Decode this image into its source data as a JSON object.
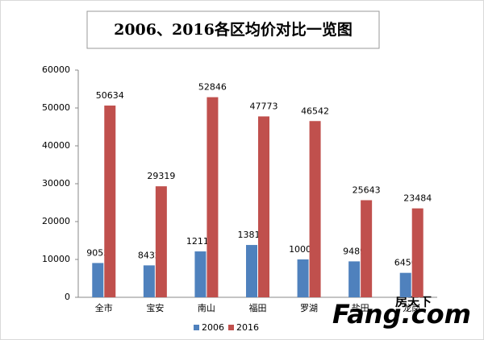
{
  "chart_data": {
    "type": "bar",
    "title": "2006、2016各区均价对比一览图",
    "categories": [
      "全市",
      "宝安",
      "南山",
      "福田",
      "罗湖",
      "盐田",
      "龙岗"
    ],
    "series": [
      {
        "name": "2006",
        "color": "#4f81bd",
        "values": [
          9055,
          8432,
          12119,
          13818,
          10008,
          9489,
          6456
        ]
      },
      {
        "name": "2016",
        "color": "#c0504d",
        "values": [
          50634,
          29319,
          52846,
          47773,
          46542,
          25643,
          23484
        ]
      }
    ],
    "ylim": [
      0,
      60000
    ],
    "yticks": [
      0,
      10000,
      20000,
      30000,
      40000,
      50000,
      60000
    ],
    "grid": false,
    "legend": "bottom",
    "watermark": [
      "房天下",
      "Fang.com"
    ]
  }
}
